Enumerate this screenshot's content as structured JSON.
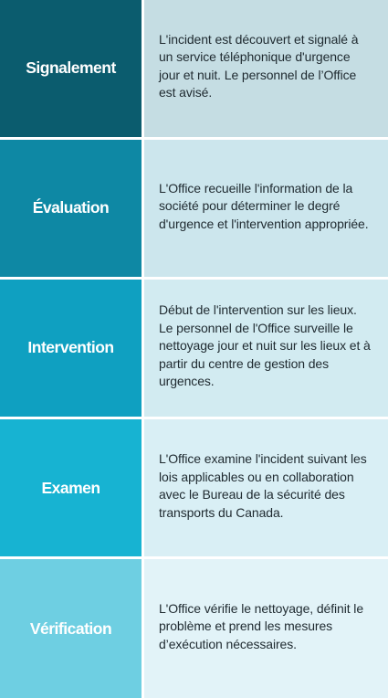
{
  "stages": [
    {
      "title": "Signalement",
      "text": "L'incident est découvert et signalé à un service téléphonique d'urgence jour et nuit. Le personnel de l’Office est avisé.",
      "label_color": "#0b5c6e",
      "desc_color": "#c5dde3"
    },
    {
      "title": "Évaluation",
      "text": "L'Office recueille l'information de la société pour déterminer le degré d'urgence et l'intervention appropriée.",
      "label_color": "#0e88a4",
      "desc_color": "#cce6ed"
    },
    {
      "title": "Intervention",
      "text": "Début de l'intervention sur les lieux. Le personnel de l'Office surveille le nettoyage jour et nuit sur les lieux et à partir du centre de gestion des urgences.",
      "label_color": "#0fa0c1",
      "desc_color": "#d2ebf1"
    },
    {
      "title": "Examen",
      "text": "L'Office examine l'incident suivant les lois applicables ou en collaboration avec le Bureau de la sécurité des transports du Canada.",
      "label_color": "#17b3d2",
      "desc_color": "#d9eff5"
    },
    {
      "title": "Vérification",
      "text": "L'Office vérifie le nettoyage, définit le problème et prend les mesures d’exécution nécessaires.",
      "label_color": "#6ecfe2",
      "desc_color": "#e2f3f8"
    }
  ]
}
